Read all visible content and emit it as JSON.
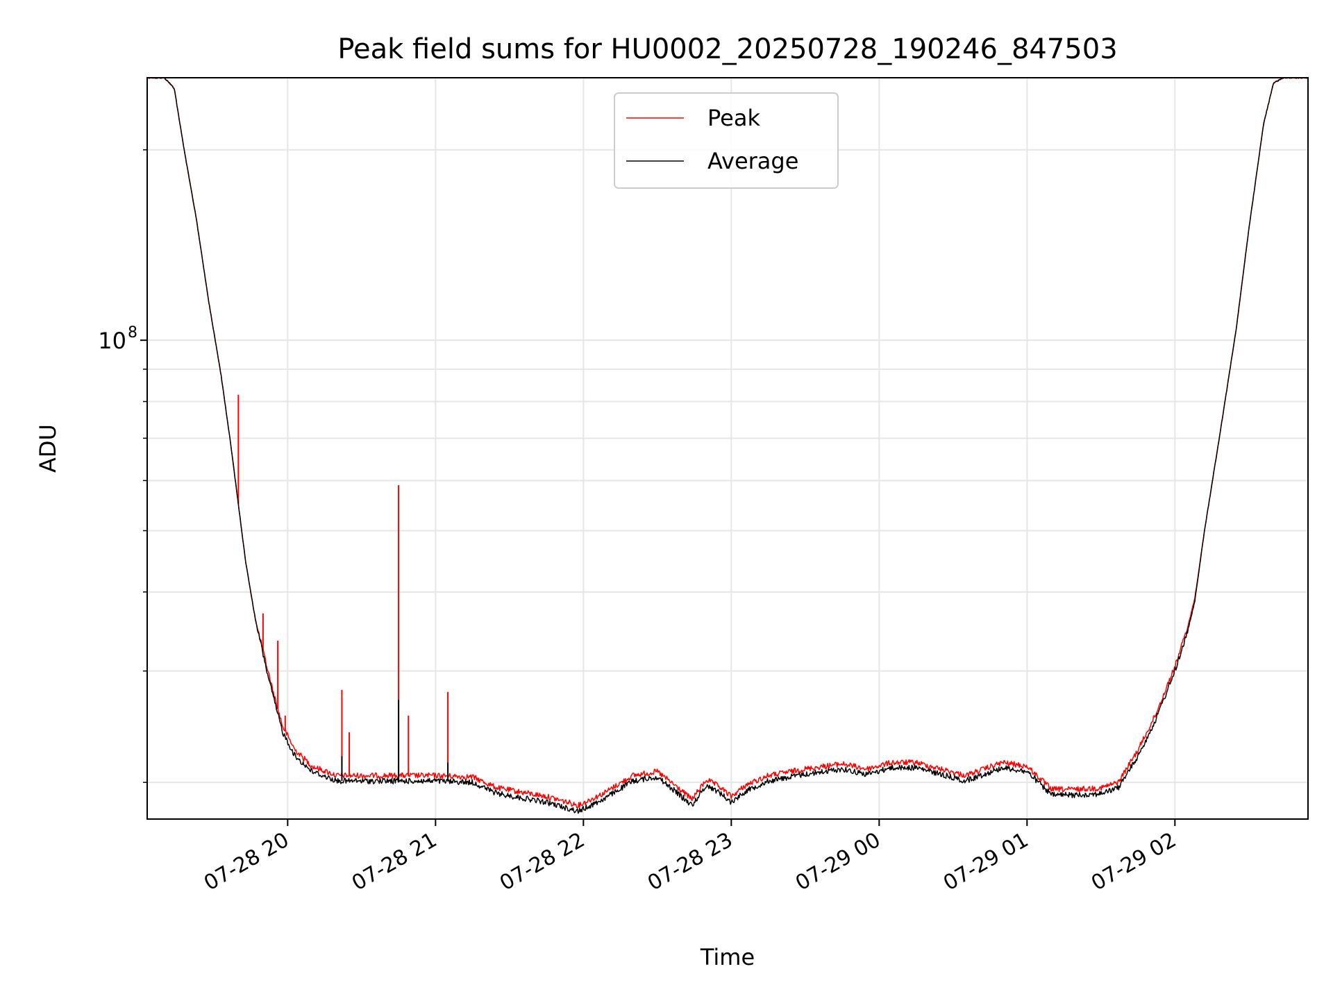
{
  "chart_data": {
    "type": "line",
    "title": "Peak field sums for HU0002_20250728_190246_847503",
    "xlabel": "Time",
    "ylabel": "ADU",
    "y_scale": "log",
    "grid": true,
    "grid_minor": true,
    "legend_position": "upper center",
    "xlim": [
      "2025-07-28 19:03",
      "2025-07-29 02:54"
    ],
    "ylim": [
      17500000.0,
      260000000.0
    ],
    "x_ticks": [
      {
        "t": "2025-07-28 20:00",
        "label": "07-28 20"
      },
      {
        "t": "2025-07-28 21:00",
        "label": "07-28 21"
      },
      {
        "t": "2025-07-28 22:00",
        "label": "07-28 22"
      },
      {
        "t": "2025-07-28 23:00",
        "label": "07-28 23"
      },
      {
        "t": "2025-07-29 00:00",
        "label": "07-29 00"
      },
      {
        "t": "2025-07-29 01:00",
        "label": "07-29 01"
      },
      {
        "t": "2025-07-29 02:00",
        "label": "07-29 02"
      }
    ],
    "y_tick_label": {
      "value": 100000000.0,
      "base": "10",
      "exponent": "8"
    },
    "y_minor_ticks": [
      20000000.0,
      30000000.0,
      40000000.0,
      50000000.0,
      60000000.0,
      70000000.0,
      80000000.0,
      90000000.0,
      200000000.0
    ],
    "series": [
      {
        "name": "Peak",
        "color": "#ff0000",
        "values": [
          [
            "2025-07-28 19:03",
            260000000.0
          ],
          [
            "2025-07-28 19:10",
            260000000.0
          ],
          [
            "2025-07-28 19:14",
            250000000.0
          ],
          [
            "2025-07-28 19:18",
            200000000.0
          ],
          [
            "2025-07-28 19:23",
            155000000.0
          ],
          [
            "2025-07-28 19:28",
            115000000.0
          ],
          [
            "2025-07-28 19:33",
            88000000.0
          ],
          [
            "2025-07-28 19:37",
            68000000.0
          ],
          [
            "2025-07-28 19:40",
            55000000.0
          ],
          [
            "2025-07-28 19:43",
            44500000.0
          ],
          [
            "2025-07-28 19:47",
            36000000.0
          ],
          [
            "2025-07-28 19:52",
            30000000.0
          ],
          [
            "2025-07-28 19:55",
            27000000.0
          ],
          [
            "2025-07-28 19:58",
            24500000.0
          ],
          [
            "2025-07-28 20:03",
            22500000.0
          ],
          [
            "2025-07-28 20:10",
            21200000.0
          ],
          [
            "2025-07-28 20:20",
            20500000.0
          ],
          [
            "2025-07-28 20:40",
            20500000.0
          ],
          [
            "2025-07-28 21:00",
            20500000.0
          ],
          [
            "2025-07-28 21:15",
            20400000.0
          ],
          [
            "2025-07-28 21:25",
            19600000.0
          ],
          [
            "2025-07-28 21:45",
            19000000.0
          ],
          [
            "2025-07-28 21:58",
            18400000.0
          ],
          [
            "2025-07-28 22:08",
            19200000.0
          ],
          [
            "2025-07-28 22:20",
            20500000.0
          ],
          [
            "2025-07-28 22:30",
            20800000.0
          ],
          [
            "2025-07-28 22:37",
            19800000.0
          ],
          [
            "2025-07-28 22:44",
            18800000.0
          ],
          [
            "2025-07-28 22:50",
            20200000.0
          ],
          [
            "2025-07-28 22:55",
            19700000.0
          ],
          [
            "2025-07-28 23:00",
            19000000.0
          ],
          [
            "2025-07-28 23:06",
            19800000.0
          ],
          [
            "2025-07-28 23:15",
            20500000.0
          ],
          [
            "2025-07-28 23:30",
            21000000.0
          ],
          [
            "2025-07-28 23:45",
            21400000.0
          ],
          [
            "2025-07-28 23:55",
            21000000.0
          ],
          [
            "2025-07-29 00:05",
            21500000.0
          ],
          [
            "2025-07-29 00:15",
            21500000.0
          ],
          [
            "2025-07-29 00:25",
            21000000.0
          ],
          [
            "2025-07-29 00:35",
            20500000.0
          ],
          [
            "2025-07-29 00:50",
            21500000.0
          ],
          [
            "2025-07-29 01:00",
            21200000.0
          ],
          [
            "2025-07-29 01:10",
            19500000.0
          ],
          [
            "2025-07-29 01:20",
            19500000.0
          ],
          [
            "2025-07-29 01:30",
            19600000.0
          ],
          [
            "2025-07-29 01:37",
            20000000.0
          ],
          [
            "2025-07-29 01:45",
            22500000.0
          ],
          [
            "2025-07-29 01:52",
            25500000.0
          ],
          [
            "2025-07-29 02:00",
            30500000.0
          ],
          [
            "2025-07-29 02:05",
            35000000.0
          ],
          [
            "2025-07-29 02:08",
            39000000.0
          ],
          [
            "2025-07-29 02:12",
            50000000.0
          ],
          [
            "2025-07-29 02:18",
            70000000.0
          ],
          [
            "2025-07-29 02:25",
            105000000.0
          ],
          [
            "2025-07-29 02:30",
            150000000.0
          ],
          [
            "2025-07-29 02:36",
            220000000.0
          ],
          [
            "2025-07-29 02:40",
            255000000.0
          ],
          [
            "2025-07-29 02:44",
            260000000.0
          ],
          [
            "2025-07-29 02:54",
            260000000.0
          ]
        ],
        "spikes": [
          [
            "2025-07-28 19:40",
            82000000.0
          ],
          [
            "2025-07-28 19:50",
            37000000.0
          ],
          [
            "2025-07-28 19:56",
            33500000.0
          ],
          [
            "2025-07-28 19:59",
            25500000.0
          ],
          [
            "2025-07-28 20:22",
            28000000.0
          ],
          [
            "2025-07-28 20:25",
            24000000.0
          ],
          [
            "2025-07-28 20:45",
            59000000.0
          ],
          [
            "2025-07-28 20:49",
            25500000.0
          ],
          [
            "2025-07-28 21:05",
            27800000.0
          ]
        ]
      },
      {
        "name": "Average",
        "color": "#000000",
        "values": [
          [
            "2025-07-28 19:03",
            260000000.0
          ],
          [
            "2025-07-28 19:10",
            260000000.0
          ],
          [
            "2025-07-28 19:14",
            250000000.0
          ],
          [
            "2025-07-28 19:18",
            200000000.0
          ],
          [
            "2025-07-28 19:23",
            155000000.0
          ],
          [
            "2025-07-28 19:28",
            115000000.0
          ],
          [
            "2025-07-28 19:33",
            88000000.0
          ],
          [
            "2025-07-28 19:37",
            68000000.0
          ],
          [
            "2025-07-28 19:40",
            55000000.0
          ],
          [
            "2025-07-28 19:43",
            44500000.0
          ],
          [
            "2025-07-28 19:47",
            36000000.0
          ],
          [
            "2025-07-28 19:52",
            29500000.0
          ],
          [
            "2025-07-28 19:55",
            26500000.0
          ],
          [
            "2025-07-28 19:58",
            24000000.0
          ],
          [
            "2025-07-28 20:03",
            22000000.0
          ],
          [
            "2025-07-28 20:10",
            20800000.0
          ],
          [
            "2025-07-28 20:20",
            20100000.0
          ],
          [
            "2025-07-28 20:40",
            20100000.0
          ],
          [
            "2025-07-28 21:00",
            20100000.0
          ],
          [
            "2025-07-28 21:15",
            20000000.0
          ],
          [
            "2025-07-28 21:25",
            19200000.0
          ],
          [
            "2025-07-28 21:45",
            18600000.0
          ],
          [
            "2025-07-28 21:58",
            18000000.0
          ],
          [
            "2025-07-28 22:08",
            18800000.0
          ],
          [
            "2025-07-28 22:20",
            20100000.0
          ],
          [
            "2025-07-28 22:30",
            20400000.0
          ],
          [
            "2025-07-28 22:37",
            19400000.0
          ],
          [
            "2025-07-28 22:44",
            18400000.0
          ],
          [
            "2025-07-28 22:50",
            19800000.0
          ],
          [
            "2025-07-28 22:55",
            19300000.0
          ],
          [
            "2025-07-28 23:00",
            18600000.0
          ],
          [
            "2025-07-28 23:06",
            19400000.0
          ],
          [
            "2025-07-28 23:15",
            20100000.0
          ],
          [
            "2025-07-28 23:30",
            20600000.0
          ],
          [
            "2025-07-28 23:45",
            21000000.0
          ],
          [
            "2025-07-28 23:55",
            20600000.0
          ],
          [
            "2025-07-29 00:05",
            21100000.0
          ],
          [
            "2025-07-29 00:15",
            21100000.0
          ],
          [
            "2025-07-29 00:25",
            20600000.0
          ],
          [
            "2025-07-29 00:35",
            20100000.0
          ],
          [
            "2025-07-29 00:50",
            21100000.0
          ],
          [
            "2025-07-29 01:00",
            20800000.0
          ],
          [
            "2025-07-29 01:10",
            19100000.0
          ],
          [
            "2025-07-29 01:20",
            19100000.0
          ],
          [
            "2025-07-29 01:30",
            19200000.0
          ],
          [
            "2025-07-29 01:37",
            19600000.0
          ],
          [
            "2025-07-29 01:45",
            22000000.0
          ],
          [
            "2025-07-29 01:52",
            25000000.0
          ],
          [
            "2025-07-29 02:00",
            30000000.0
          ],
          [
            "2025-07-29 02:05",
            34500000.0
          ],
          [
            "2025-07-29 02:08",
            38500000.0
          ],
          [
            "2025-07-29 02:12",
            50000000.0
          ],
          [
            "2025-07-29 02:18",
            70000000.0
          ],
          [
            "2025-07-29 02:25",
            105000000.0
          ],
          [
            "2025-07-29 02:30",
            150000000.0
          ],
          [
            "2025-07-29 02:36",
            220000000.0
          ],
          [
            "2025-07-29 02:40",
            255000000.0
          ],
          [
            "2025-07-29 02:44",
            260000000.0
          ],
          [
            "2025-07-29 02:54",
            260000000.0
          ]
        ],
        "spikes": [
          [
            "2025-07-28 20:45",
            27000000.0
          ],
          [
            "2025-07-28 20:22",
            22000000.0
          ],
          [
            "2025-07-28 21:05",
            21500000.0
          ]
        ]
      }
    ]
  }
}
